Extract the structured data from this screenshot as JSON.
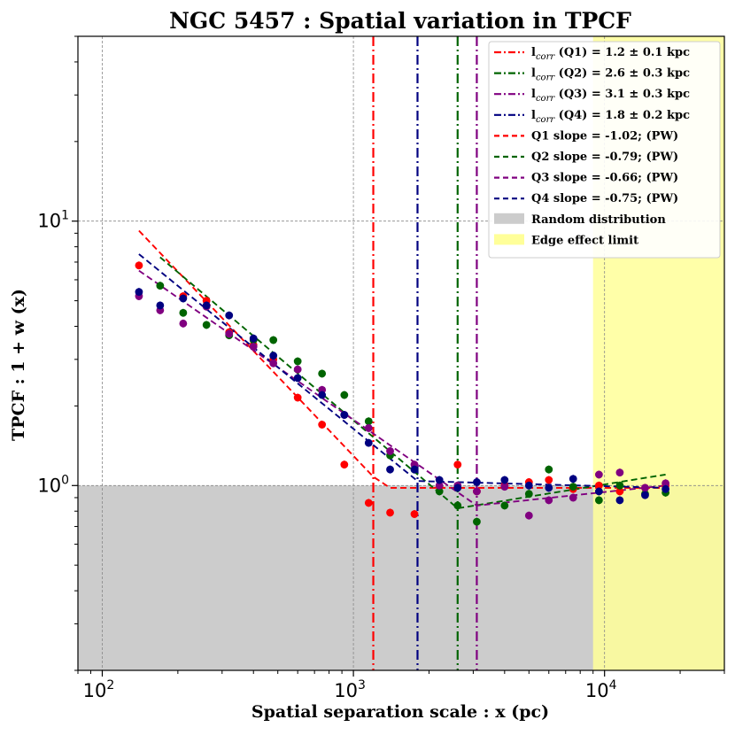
{
  "chart_data": {
    "type": "scatter",
    "title": "NGC 5457 : Spatial variation in TPCF",
    "xlabel": "Spatial separation scale : x (pc)",
    "ylabel": "TPCF : 1 + w (x)",
    "x_scale": "log",
    "y_scale": "log",
    "xlim": [
      80,
      30000
    ],
    "ylim": [
      0.2,
      50
    ],
    "x_ticks": [
      {
        "value": 100,
        "base": "10",
        "exp": "2"
      },
      {
        "value": 1000,
        "base": "10",
        "exp": "3"
      },
      {
        "value": 10000,
        "base": "10",
        "exp": "4"
      }
    ],
    "y_ticks": [
      {
        "value": 1,
        "base": "10",
        "exp": "0"
      },
      {
        "value": 10,
        "base": "10",
        "exp": "1"
      }
    ],
    "grid": true,
    "random_distribution_level": 1.0,
    "edge_effect_limit": 9000,
    "colors": {
      "Q1": "#ff0000",
      "Q2": "#006400",
      "Q3": "#800080",
      "Q4": "#000080",
      "random": "#cccccc",
      "edge": "#ffff99"
    },
    "series": [
      {
        "name": "Q1",
        "color": "#ff0000",
        "points": [
          [
            140,
            6.8
          ],
          [
            210,
            5.2
          ],
          [
            260,
            5.0
          ],
          [
            320,
            3.8
          ],
          [
            400,
            3.4
          ],
          [
            480,
            3.0
          ],
          [
            600,
            2.15
          ],
          [
            750,
            1.7
          ],
          [
            920,
            1.2
          ],
          [
            1150,
            0.86
          ],
          [
            1400,
            0.79
          ],
          [
            1750,
            0.78
          ],
          [
            2200,
            0.99
          ],
          [
            2600,
            1.2
          ],
          [
            3100,
            0.95
          ],
          [
            4000,
            1.0
          ],
          [
            5000,
            1.03
          ],
          [
            6000,
            1.05
          ],
          [
            7500,
            0.97
          ],
          [
            9500,
            1.0
          ],
          [
            11500,
            0.95
          ],
          [
            14500,
            0.98
          ],
          [
            17500,
            1.0
          ]
        ],
        "fit": [
          [
            140,
            9.2
          ],
          [
            1200,
            1.08
          ],
          [
            1400,
            0.98
          ],
          [
            17500,
            0.98
          ]
        ],
        "lcorr": 1200,
        "lcorr_label": "(Q1) = 1.2 ± 0.1 kpc",
        "slope_label": "Q1 slope = -1.02; (PW)"
      },
      {
        "name": "Q2",
        "color": "#006400",
        "points": [
          [
            170,
            5.7
          ],
          [
            210,
            4.5
          ],
          [
            260,
            4.05
          ],
          [
            320,
            3.7
          ],
          [
            400,
            3.55
          ],
          [
            480,
            3.55
          ],
          [
            600,
            2.95
          ],
          [
            750,
            2.65
          ],
          [
            920,
            2.2
          ],
          [
            1150,
            1.75
          ],
          [
            1400,
            1.3
          ],
          [
            1750,
            1.15
          ],
          [
            2200,
            0.95
          ],
          [
            2600,
            0.84
          ],
          [
            3100,
            0.73
          ],
          [
            4000,
            0.84
          ],
          [
            5000,
            0.93
          ],
          [
            6000,
            1.15
          ],
          [
            7500,
            0.99
          ],
          [
            9500,
            0.88
          ],
          [
            11500,
            1.0
          ],
          [
            14500,
            0.93
          ],
          [
            17500,
            0.94
          ]
        ],
        "fit": [
          [
            170,
            7.3
          ],
          [
            2600,
            0.82
          ],
          [
            17500,
            1.1
          ]
        ],
        "lcorr": 2600,
        "lcorr_label": "(Q2) = 2.6 ± 0.3 kpc",
        "slope_label": "Q2 slope = -0.79; (PW)"
      },
      {
        "name": "Q3",
        "color": "#800080",
        "points": [
          [
            140,
            5.2
          ],
          [
            170,
            4.6
          ],
          [
            210,
            4.1
          ],
          [
            260,
            4.75
          ],
          [
            320,
            3.75
          ],
          [
            400,
            3.35
          ],
          [
            480,
            2.9
          ],
          [
            600,
            2.75
          ],
          [
            750,
            2.3
          ],
          [
            920,
            1.85
          ],
          [
            1150,
            1.65
          ],
          [
            1400,
            1.35
          ],
          [
            1750,
            1.2
          ],
          [
            2200,
            1.0
          ],
          [
            2600,
            1.0
          ],
          [
            3100,
            0.95
          ],
          [
            4000,
            0.99
          ],
          [
            5000,
            0.77
          ],
          [
            6000,
            0.88
          ],
          [
            7500,
            0.9
          ],
          [
            9500,
            1.1
          ],
          [
            11500,
            1.12
          ],
          [
            14500,
            0.98
          ],
          [
            17500,
            1.02
          ]
        ],
        "fit": [
          [
            140,
            6.5
          ],
          [
            3100,
            0.84
          ],
          [
            17500,
            1.0
          ]
        ],
        "lcorr": 3100,
        "lcorr_label": "(Q3) = 3.1 ± 0.3 kpc",
        "slope_label": "Q3 slope = -0.66; (PW)"
      },
      {
        "name": "Q4",
        "color": "#000080",
        "points": [
          [
            140,
            5.4
          ],
          [
            170,
            4.8
          ],
          [
            210,
            5.1
          ],
          [
            260,
            4.8
          ],
          [
            320,
            4.4
          ],
          [
            400,
            3.6
          ],
          [
            480,
            3.1
          ],
          [
            600,
            2.55
          ],
          [
            750,
            2.2
          ],
          [
            920,
            1.85
          ],
          [
            1150,
            1.45
          ],
          [
            1400,
            1.15
          ],
          [
            1750,
            1.15
          ],
          [
            2200,
            1.05
          ],
          [
            2600,
            0.98
          ],
          [
            3100,
            1.03
          ],
          [
            4000,
            1.05
          ],
          [
            5000,
            1.0
          ],
          [
            6000,
            0.98
          ],
          [
            7500,
            1.06
          ],
          [
            9500,
            0.95
          ],
          [
            11500,
            0.88
          ],
          [
            14500,
            0.92
          ],
          [
            17500,
            0.97
          ]
        ],
        "fit": [
          [
            140,
            7.5
          ],
          [
            1800,
            1.04
          ],
          [
            17500,
            0.98
          ]
        ],
        "lcorr": 1800,
        "lcorr_label": "(Q4) = 1.8 ± 0.2 kpc",
        "slope_label": "Q4 slope = -0.75; (PW)"
      }
    ],
    "legend": {
      "placement": "top-right",
      "lcorr_prefix": "l",
      "lcorr_subscript": "corr",
      "random_label": "Random distribution",
      "edge_label": "Edge effect limit"
    }
  }
}
